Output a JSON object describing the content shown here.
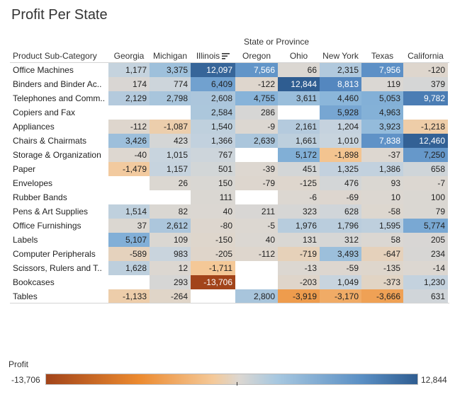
{
  "title": "Profit Per State",
  "chart_data": {
    "type": "heatmap",
    "title": "Profit Per State",
    "column_group_label": "State or Province",
    "row_header": "Product Sub-Category",
    "columns": [
      "Georgia",
      "Michigan",
      "Illinois",
      "Oregon",
      "Ohio",
      "New York",
      "Texas",
      "California"
    ],
    "sorted_column": "Illinois",
    "rows": [
      {
        "label": "Office Machines",
        "values": [
          1177,
          3375,
          12097,
          7566,
          66,
          2315,
          7956,
          -120
        ]
      },
      {
        "label": "Binders and Binder Ac..",
        "values": [
          174,
          774,
          6409,
          -122,
          12844,
          8813,
          119,
          379
        ]
      },
      {
        "label": "Telephones and Comm..",
        "values": [
          2129,
          2798,
          2608,
          4755,
          3611,
          4460,
          5053,
          9782
        ]
      },
      {
        "label": "Copiers and Fax",
        "values": [
          null,
          null,
          2584,
          286,
          null,
          5928,
          4963,
          null
        ]
      },
      {
        "label": "Appliances",
        "values": [
          -112,
          -1087,
          1540,
          -9,
          2161,
          1204,
          3923,
          -1218
        ]
      },
      {
        "label": "Chairs & Chairmats",
        "values": [
          3426,
          423,
          1366,
          2639,
          1661,
          1010,
          7838,
          12460
        ]
      },
      {
        "label": "Storage & Organization",
        "values": [
          -40,
          1015,
          767,
          null,
          5172,
          -1898,
          -37,
          7250
        ]
      },
      {
        "label": "Paper",
        "values": [
          -1479,
          1157,
          501,
          -39,
          451,
          1325,
          1386,
          658
        ]
      },
      {
        "label": "Envelopes",
        "values": [
          null,
          26,
          150,
          -79,
          -125,
          476,
          93,
          -7
        ]
      },
      {
        "label": "Rubber Bands",
        "values": [
          null,
          null,
          111,
          null,
          -6,
          -69,
          10,
          100
        ]
      },
      {
        "label": "Pens & Art Supplies",
        "values": [
          1514,
          82,
          40,
          211,
          323,
          628,
          -58,
          79
        ]
      },
      {
        "label": "Office Furnishings",
        "values": [
          37,
          2612,
          -80,
          -5,
          1976,
          1796,
          1595,
          5774
        ]
      },
      {
        "label": "Labels",
        "values": [
          5107,
          109,
          -150,
          40,
          131,
          312,
          58,
          205
        ]
      },
      {
        "label": "Computer Peripherals",
        "values": [
          -589,
          983,
          -205,
          -112,
          -719,
          3493,
          -647,
          234
        ]
      },
      {
        "label": "Scissors, Rulers and T..",
        "values": [
          1628,
          12,
          -1711,
          null,
          -13,
          -59,
          -135,
          -14
        ]
      },
      {
        "label": "Bookcases",
        "values": [
          null,
          293,
          -13706,
          null,
          -203,
          1049,
          -373,
          1230
        ]
      },
      {
        "label": "Tables",
        "values": [
          -1133,
          -264,
          null,
          2800,
          -3919,
          -3170,
          -3666,
          631
        ]
      }
    ],
    "legend": {
      "title": "Profit",
      "min": -13706,
      "max": 12844,
      "min_label": "-13,706",
      "max_label": "12,844"
    }
  },
  "colors": {
    "negative_strong": "#a2441a",
    "negative_mid": "#ec8a2f",
    "neutral": "#dcd7d1",
    "positive_mid": "#7fb0d8",
    "positive_strong": "#2f5d91"
  }
}
